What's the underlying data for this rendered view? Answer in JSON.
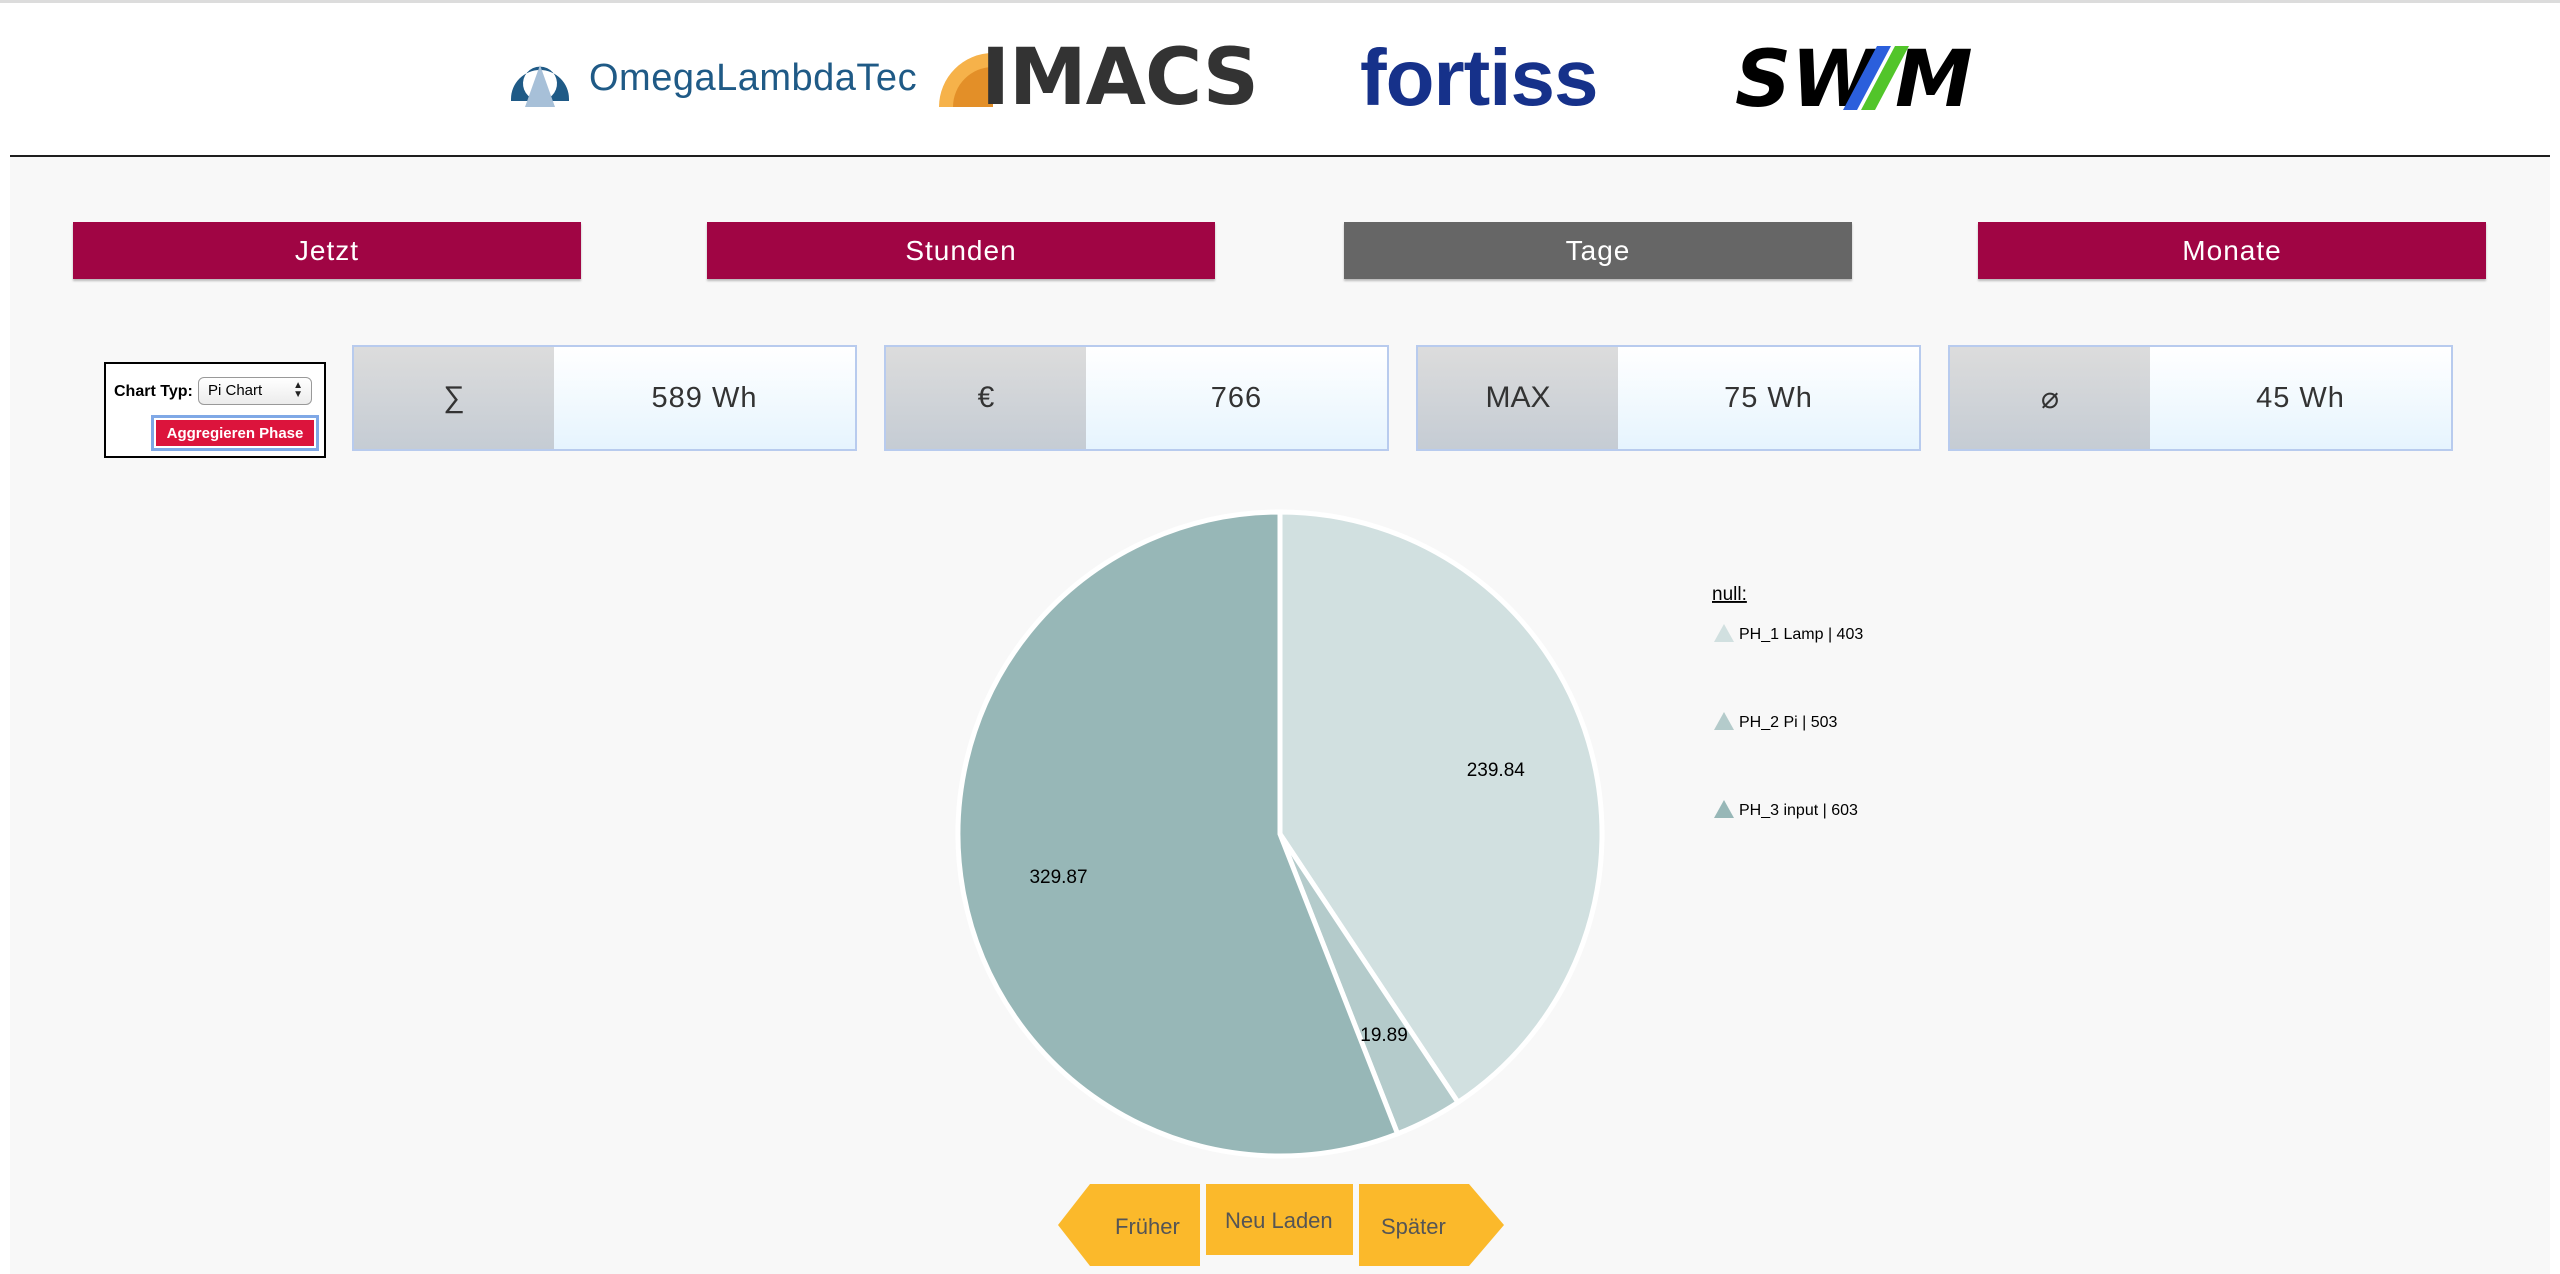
{
  "logos": {
    "omega": "OmegaLambdaTec",
    "imacs": "IMACS",
    "fortiss": "fortiss",
    "swm": "SWM"
  },
  "periods": [
    {
      "label": "Jetzt",
      "active": false
    },
    {
      "label": "Stunden",
      "active": false
    },
    {
      "label": "Tage",
      "active": true
    },
    {
      "label": "Monate",
      "active": false
    }
  ],
  "controls": {
    "chart_type_label": "Chart Typ:",
    "chart_type_value": "Pi Chart",
    "aggregate_button": "Aggregieren Phase"
  },
  "stats": [
    {
      "symbol": "∑",
      "value": "589 Wh"
    },
    {
      "symbol": "€",
      "value": "766"
    },
    {
      "symbol": "MAX",
      "value": "75 Wh"
    },
    {
      "symbol": "⌀",
      "value": "45 Wh"
    }
  ],
  "chart_data": {
    "type": "pie",
    "legend_title": "null:",
    "legend_placement": "right",
    "slices": [
      {
        "name": "PH_1 Lamp | 403",
        "value": 239.84,
        "label": "239.84",
        "color": "#d1e0e0"
      },
      {
        "name": "PH_2 Pi | 503",
        "value": 19.89,
        "label": "19.89",
        "color": "#b4cbcb"
      },
      {
        "name": "PH_3 input | 603",
        "value": 329.87,
        "label": "329.87",
        "color": "#97b7b7"
      }
    ]
  },
  "navigation": {
    "earlier": "Früher",
    "reload": "Neu Laden",
    "later": "Später"
  },
  "colors": {
    "accent": "#a00544",
    "active_tab": "#666666",
    "aggregate": "#dc143c",
    "nav": "#fbb92b"
  }
}
